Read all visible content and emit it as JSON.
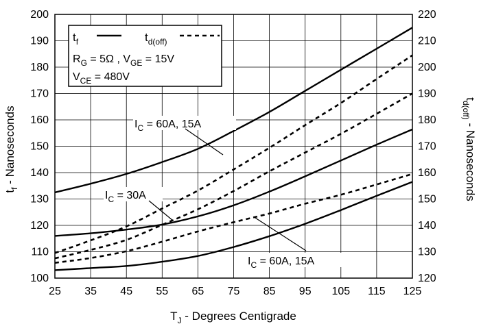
{
  "chart_data": {
    "type": "line",
    "xlabel": {
      "main": "T",
      "sub": "J",
      "rest": " - Degrees Centigrade"
    },
    "ylabel_left": {
      "main": "t",
      "sub": "f",
      "rest": " - Nanoseconds"
    },
    "ylabel_right": {
      "main": "t",
      "sub": "d(off)",
      "rest": " - Nanoseconds"
    },
    "x_ticks": [
      "25",
      "35",
      "45",
      "55",
      "65",
      "75",
      "85",
      "95",
      "105",
      "115",
      "125"
    ],
    "y_left_ticks": [
      "100",
      "110",
      "120",
      "130",
      "140",
      "150",
      "160",
      "170",
      "180",
      "190",
      "200"
    ],
    "y_right_ticks": [
      "120",
      "130",
      "140",
      "150",
      "160",
      "170",
      "180",
      "190",
      "200",
      "210",
      "220"
    ],
    "xlim": [
      25,
      125
    ],
    "ylim_left": [
      100,
      200
    ],
    "ylim_right": [
      120,
      220
    ],
    "grid": true,
    "legend": {
      "placement": "top-left",
      "solid": {
        "main": "t",
        "sub": "f"
      },
      "dashed": {
        "main": "t",
        "sub": "d(off)"
      },
      "conditions": [
        {
          "parts": [
            {
              "t": "R"
            },
            {
              "t": "G",
              "sub": true
            },
            {
              "t": " = 5Ω ,  V"
            },
            {
              "t": "GE",
              "sub": true
            },
            {
              "t": " = 15V"
            }
          ]
        },
        {
          "parts": [
            {
              "t": "V"
            },
            {
              "t": "CE",
              "sub": true
            },
            {
              "t": " = 480V"
            }
          ]
        }
      ]
    },
    "annotations": [
      {
        "main": "I",
        "sub": "C",
        "rest": " = 60A, 15A"
      },
      {
        "main": "I",
        "sub": "C",
        "rest": " = 30A"
      },
      {
        "main": "I",
        "sub": "C",
        "rest": " = 60A, 15A"
      }
    ],
    "series": [
      {
        "axis": "left",
        "style": "solid",
        "x": [
          25,
          35,
          45,
          55,
          65,
          75,
          85,
          95,
          105,
          115,
          125
        ],
        "y": [
          132.5,
          135.8,
          139.5,
          144,
          149,
          155.8,
          163,
          171,
          179,
          187,
          195
        ]
      },
      {
        "axis": "left",
        "style": "solid",
        "x": [
          25,
          35,
          45,
          55,
          65,
          75,
          85,
          95,
          105,
          115,
          125
        ],
        "y": [
          116,
          117,
          118.4,
          120.3,
          123.4,
          127.6,
          132.8,
          138.6,
          144.6,
          150.6,
          156.4
        ]
      },
      {
        "axis": "left",
        "style": "solid",
        "x": [
          25,
          35,
          45,
          55,
          65,
          75,
          85,
          95,
          105,
          115,
          125
        ],
        "y": [
          103,
          103.8,
          104.6,
          106.2,
          108.4,
          111.8,
          115.9,
          120.6,
          125.8,
          131.2,
          136.5
        ]
      },
      {
        "axis": "right",
        "style": "dashed",
        "x": [
          25,
          35,
          45,
          55,
          65,
          75,
          85,
          95,
          105,
          115,
          125
        ],
        "y": [
          129.5,
          134.3,
          139.6,
          146.4,
          153.2,
          161.2,
          169.4,
          178,
          186.4,
          195.5,
          204.5
        ]
      },
      {
        "axis": "right",
        "style": "dashed",
        "x": [
          25,
          35,
          45,
          55,
          65,
          75,
          85,
          95,
          105,
          115,
          125
        ],
        "y": [
          127.5,
          130.7,
          134.5,
          140.2,
          146.1,
          153,
          160.5,
          167.6,
          174.7,
          182.3,
          190
        ]
      },
      {
        "axis": "right",
        "style": "dashed",
        "x": [
          25,
          35,
          45,
          55,
          65,
          75,
          85,
          95,
          105,
          115,
          125
        ],
        "y": [
          125.8,
          127.6,
          130.2,
          133.8,
          137.7,
          141.2,
          144.5,
          148.2,
          151.6,
          155.5,
          159.5
        ]
      }
    ]
  }
}
